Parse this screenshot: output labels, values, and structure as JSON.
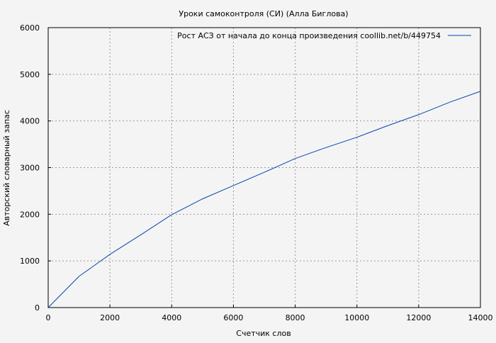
{
  "chart_data": {
    "type": "line",
    "title": "Уроки самоконтроля (СИ) (Алла Биглова)",
    "xlabel": "Счетчик слов",
    "ylabel": "Авторский словарный запас",
    "xlim": [
      0,
      14000
    ],
    "ylim": [
      0,
      6000
    ],
    "xticks": [
      0,
      2000,
      4000,
      6000,
      8000,
      10000,
      12000,
      14000
    ],
    "yticks": [
      0,
      1000,
      2000,
      3000,
      4000,
      5000,
      6000
    ],
    "grid": true,
    "legend_position": "top-right",
    "series": [
      {
        "name": "Рост АСЗ от начала до конца произведения coollib.net/b/449754",
        "color": "#0645ad",
        "x": [
          0,
          1000,
          2000,
          3000,
          4000,
          5000,
          6000,
          7000,
          8000,
          9000,
          10000,
          11000,
          12000,
          13000,
          14000
        ],
        "y": [
          0,
          670,
          1140,
          1560,
          1990,
          2330,
          2615,
          2900,
          3195,
          3430,
          3650,
          3900,
          4135,
          4400,
          4635
        ]
      }
    ]
  }
}
